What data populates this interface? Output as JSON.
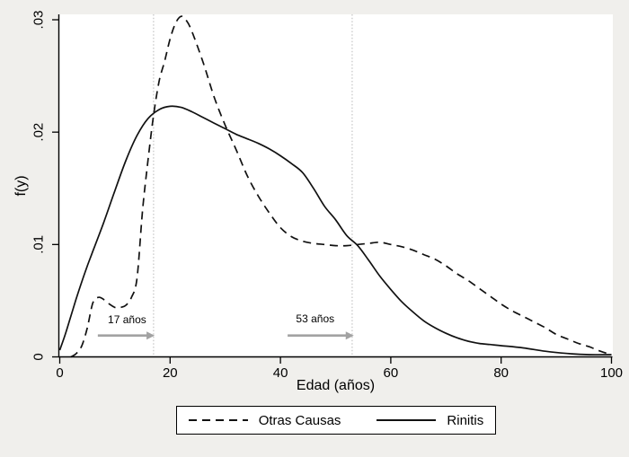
{
  "figure": {
    "background": "#f0efec",
    "plot_background": "#ffffff",
    "curve_color": "#111111",
    "arrow_color": "#a2a2a2",
    "refline_color": "#c4c4c4"
  },
  "chart_data": {
    "type": "line",
    "title": "",
    "xlabel": "Edad (años)",
    "ylabel": "f(y)",
    "xlim": [
      0,
      100
    ],
    "ylim": [
      0,
      0.03
    ],
    "grid": false,
    "legend_position": "bottom",
    "x_ticks": [
      0,
      20,
      40,
      60,
      80,
      100
    ],
    "x_tick_labels": [
      "0",
      "20",
      "40",
      "60",
      "80",
      "100"
    ],
    "y_ticks": [
      0,
      0.01,
      0.02,
      0.03
    ],
    "y_tick_labels": [
      "0",
      ".01",
      ".02",
      ".03"
    ],
    "series": [
      {
        "name": "Otras Causas",
        "style": "dashed",
        "points": [
          [
            2,
            0
          ],
          [
            3,
            0.0003
          ],
          [
            4,
            0.001
          ],
          [
            5,
            0.0026
          ],
          [
            6,
            0.0048
          ],
          [
            7,
            0.0053
          ],
          [
            8,
            0.0051
          ],
          [
            9,
            0.0047
          ],
          [
            10,
            0.0044
          ],
          [
            11,
            0.0044
          ],
          [
            12,
            0.0046
          ],
          [
            13,
            0.0053
          ],
          [
            14,
            0.007
          ],
          [
            15,
            0.013
          ],
          [
            16,
            0.0175
          ],
          [
            17,
            0.0215
          ],
          [
            18,
            0.0245
          ],
          [
            19,
            0.0263
          ],
          [
            20,
            0.0283
          ],
          [
            21,
            0.0297
          ],
          [
            22,
            0.0303
          ],
          [
            23,
            0.0299
          ],
          [
            24,
            0.0289
          ],
          [
            26,
            0.0262
          ],
          [
            28,
            0.0231
          ],
          [
            30,
            0.0206
          ],
          [
            32,
            0.0184
          ],
          [
            34,
            0.0161
          ],
          [
            36,
            0.0143
          ],
          [
            38,
            0.0128
          ],
          [
            40,
            0.0115
          ],
          [
            42,
            0.0107
          ],
          [
            44,
            0.0103
          ],
          [
            46,
            0.0101
          ],
          [
            48,
            0.01
          ],
          [
            50,
            0.0099
          ],
          [
            52,
            0.0099
          ],
          [
            54,
            0.01
          ],
          [
            56,
            0.0101
          ],
          [
            58,
            0.0102
          ],
          [
            60,
            0.01
          ],
          [
            62,
            0.0098
          ],
          [
            64,
            0.0095
          ],
          [
            66,
            0.0091
          ],
          [
            68,
            0.0087
          ],
          [
            70,
            0.0081
          ],
          [
            72,
            0.0074
          ],
          [
            74,
            0.0068
          ],
          [
            76,
            0.0061
          ],
          [
            78,
            0.0054
          ],
          [
            80,
            0.0047
          ],
          [
            82,
            0.0041
          ],
          [
            84,
            0.0036
          ],
          [
            86,
            0.0031
          ],
          [
            88,
            0.0026
          ],
          [
            90,
            0.002
          ],
          [
            92,
            0.0016
          ],
          [
            94,
            0.0012
          ],
          [
            96,
            0.0009
          ],
          [
            98,
            0.0005
          ],
          [
            100,
            0.0002
          ]
        ]
      },
      {
        "name": "Rinitis",
        "style": "solid",
        "points": [
          [
            0,
            0.0006
          ],
          [
            1,
            0.002
          ],
          [
            2,
            0.0036
          ],
          [
            3,
            0.0052
          ],
          [
            4,
            0.0067
          ],
          [
            5,
            0.0081
          ],
          [
            6,
            0.0094
          ],
          [
            8,
            0.012
          ],
          [
            10,
            0.0148
          ],
          [
            12,
            0.0175
          ],
          [
            14,
            0.0197
          ],
          [
            16,
            0.0212
          ],
          [
            18,
            0.022
          ],
          [
            20,
            0.0223
          ],
          [
            22,
            0.0222
          ],
          [
            24,
            0.0218
          ],
          [
            26,
            0.0213
          ],
          [
            28,
            0.0208
          ],
          [
            30,
            0.0203
          ],
          [
            32,
            0.0198
          ],
          [
            34,
            0.0194
          ],
          [
            36,
            0.019
          ],
          [
            38,
            0.0185
          ],
          [
            40,
            0.0179
          ],
          [
            42,
            0.0172
          ],
          [
            44,
            0.0164
          ],
          [
            46,
            0.015
          ],
          [
            48,
            0.0134
          ],
          [
            50,
            0.0122
          ],
          [
            52,
            0.0108
          ],
          [
            54,
            0.0099
          ],
          [
            56,
            0.0086
          ],
          [
            58,
            0.0072
          ],
          [
            60,
            0.006
          ],
          [
            62,
            0.0049
          ],
          [
            64,
            0.004
          ],
          [
            66,
            0.0032
          ],
          [
            68,
            0.0026
          ],
          [
            70,
            0.0021
          ],
          [
            72,
            0.0017
          ],
          [
            74,
            0.0014
          ],
          [
            76,
            0.0012
          ],
          [
            78,
            0.0011
          ],
          [
            80,
            0.001
          ],
          [
            84,
            0.0008
          ],
          [
            88,
            0.0005
          ],
          [
            92,
            0.0003
          ],
          [
            96,
            0.0002
          ],
          [
            100,
            0.0002
          ]
        ]
      }
    ],
    "reference_lines": [
      {
        "x": 17,
        "style": "dotted"
      },
      {
        "x": 53,
        "style": "dotted"
      }
    ],
    "annotations": [
      {
        "text": "17 años",
        "text_x": 12.2,
        "text_y_f": 0.0033,
        "arrow_y_f": 0.0019,
        "arrow_from_x": 6.9,
        "arrow_to_x": 17.2
      },
      {
        "text": "53 años",
        "text_x": 46.3,
        "text_y_f": 0.0034,
        "arrow_y_f": 0.0019,
        "arrow_from_x": 41.3,
        "arrow_to_x": 53.3
      }
    ]
  },
  "legend": {
    "items": [
      {
        "label": "Otras Causas",
        "line_style": "dashed"
      },
      {
        "label": "Rinitis",
        "line_style": "solid"
      }
    ]
  }
}
